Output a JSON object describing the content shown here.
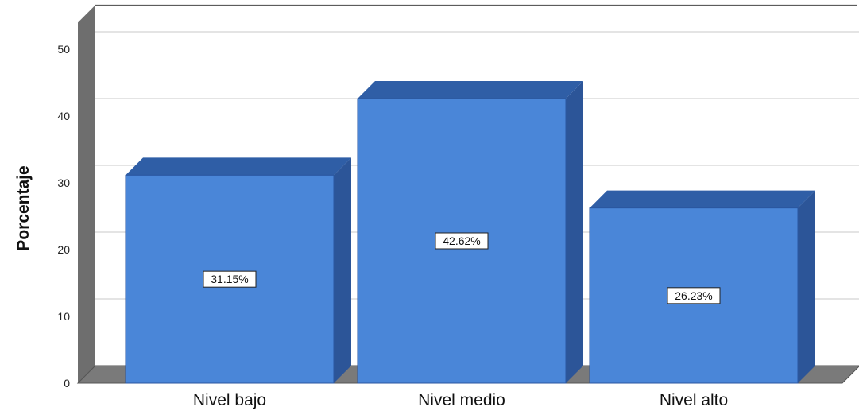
{
  "chart_data": {
    "type": "bar",
    "title": "",
    "xlabel": "",
    "ylabel": "Porcentaje",
    "categories": [
      "Nivel bajo",
      "Nivel medio",
      "Nivel alto"
    ],
    "values": [
      31.15,
      42.62,
      26.23
    ],
    "data_labels": [
      "31.15%",
      "42.62%",
      "26.23%"
    ],
    "ylim": [
      0,
      54
    ],
    "yticks": [
      "0",
      "10",
      "20",
      "30",
      "40",
      "50"
    ],
    "ytick_values": [
      0,
      10,
      20,
      30,
      40,
      50
    ],
    "grid": true,
    "legend": "none",
    "style": "3d",
    "colors": {
      "bar_face": "#4a86d8",
      "bar_side": "#2c5598",
      "bar_top": "#2f5ea6",
      "bar_edge": "#2a56a0",
      "wall": "#6e6e6e",
      "floor": "#7a7a7a",
      "grid": "#c8c8c8"
    }
  }
}
